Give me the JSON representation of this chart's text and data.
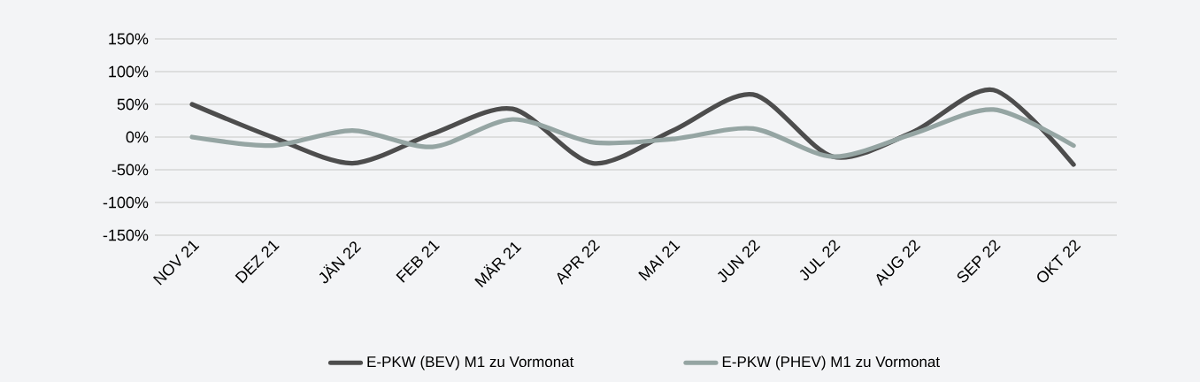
{
  "chart_data": {
    "type": "line",
    "categories": [
      "NOV 21",
      "DEZ 21",
      "JÄN 22",
      "FEB 21",
      "MÄR 21",
      "APR 22",
      "MAI 21",
      "JUN 22",
      "JUL 22",
      "AUG 22",
      "SEP 22",
      "OKT 22"
    ],
    "series": [
      {
        "name": "E-PKW (BEV) M1 zu Vormonat",
        "color": "#4d4d4d",
        "values": [
          50,
          0,
          -40,
          5,
          43,
          -40,
          10,
          65,
          -30,
          8,
          72,
          -42
        ]
      },
      {
        "name": "E-PKW (PHEV) M1 zu Vormonat",
        "color": "#95a5a3",
        "values": [
          0,
          -13,
          10,
          -15,
          27,
          -8,
          -3,
          13,
          -30,
          5,
          42,
          -13
        ]
      }
    ],
    "ylim": [
      -150,
      150
    ],
    "yticks": [
      {
        "value": -150,
        "label": "-150%"
      },
      {
        "value": -100,
        "label": "-100%"
      },
      {
        "value": -50,
        "label": "-50%"
      },
      {
        "value": 0,
        "label": "0%"
      },
      {
        "value": 50,
        "label": "50%"
      },
      {
        "value": 100,
        "label": "100%"
      },
      {
        "value": 150,
        "label": "150%"
      }
    ],
    "grid": "y",
    "legend": "bottom",
    "marker": "none",
    "line_style": "solid"
  }
}
